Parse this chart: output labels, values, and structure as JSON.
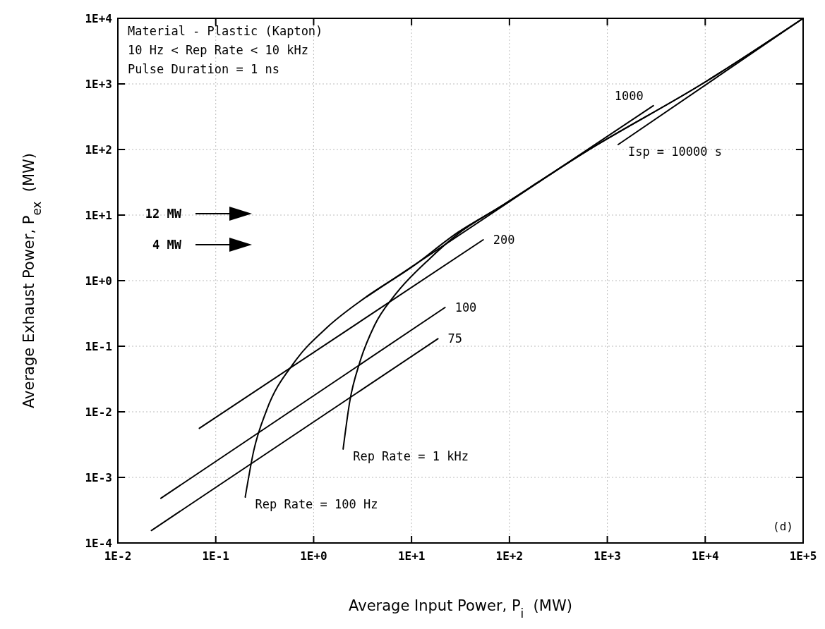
{
  "chart_data": {
    "type": "line",
    "xlabel": "Average Input Power, P$_{i}$  (MW)",
    "ylabel": "Average Exhaust Power, P$_{ex}$  (MW)",
    "log": "xy",
    "grid": true,
    "marker": "none",
    "line_style": "solid",
    "xlim": [
      0.01,
      100000
    ],
    "ylim": [
      0.0001,
      10000
    ],
    "xticks": [
      {
        "value": 0.01,
        "label": "1E-2"
      },
      {
        "value": 0.1,
        "label": "1E-1"
      },
      {
        "value": 1,
        "label": "1E+0"
      },
      {
        "value": 10,
        "label": "1E+1"
      },
      {
        "value": 100,
        "label": "1E+2"
      },
      {
        "value": 1000,
        "label": "1E+3"
      },
      {
        "value": 10000,
        "label": "1E+4"
      },
      {
        "value": 100000,
        "label": "1E+5"
      }
    ],
    "yticks": [
      {
        "value": 0.0001,
        "label": "1E-4"
      },
      {
        "value": 0.001,
        "label": "1E-3"
      },
      {
        "value": 0.01,
        "label": "1E-2"
      },
      {
        "value": 0.1,
        "label": "1E-1"
      },
      {
        "value": 1,
        "label": "1E+0"
      },
      {
        "value": 10,
        "label": "1E+1"
      },
      {
        "value": 100,
        "label": "1E+2"
      },
      {
        "value": 1000,
        "label": "1E+3"
      },
      {
        "value": 10000,
        "label": "1E+4"
      }
    ],
    "series": [
      {
        "name": "75",
        "color": "#000000",
        "x": [
          0.022,
          18.6
        ],
        "values": [
          0.000155,
          0.13
        ]
      },
      {
        "name": "100",
        "color": "#000000",
        "x": [
          0.0275,
          22
        ],
        "values": [
          0.00048,
          0.39
        ]
      },
      {
        "name": "200",
        "color": "#000000",
        "x": [
          0.068,
          54
        ],
        "values": [
          0.0056,
          4.2
        ]
      },
      {
        "name": "1000",
        "color": "#000000",
        "x": [
          3.5,
          2950
        ],
        "values": [
          0.57,
          465
        ]
      },
      {
        "name": "Isp = 10000 s",
        "color": "#000000",
        "x": [
          1290,
          100000
        ],
        "values": [
          119,
          10000
        ]
      },
      {
        "name": "Rep Rate = 100 Hz",
        "color": "#000000",
        "x": [
          0.2,
          0.245,
          0.33,
          0.63,
          1.38,
          3.3,
          10,
          30,
          78,
          590,
          10000,
          100000
        ],
        "values": [
          0.0005,
          0.0026,
          0.0105,
          0.056,
          0.195,
          0.54,
          1.6,
          5.5,
          13,
          91,
          1070,
          10000
        ]
      },
      {
        "name": "Rep Rate = 1 kHz",
        "color": "#000000",
        "x": [
          2.0,
          2.35,
          2.95,
          4.2,
          6.8,
          15.5,
          30,
          78,
          590,
          10000,
          100000
        ],
        "values": [
          0.0027,
          0.015,
          0.056,
          0.21,
          0.61,
          2.2,
          5.2,
          13,
          91,
          1070,
          10000
        ]
      }
    ],
    "annotations": [
      "Material - Plastic (Kapton)",
      "10 Hz < Rep Rate < 10 kHz",
      "Pulse Duration = 1 ns",
      "12 MW",
      "4 MW",
      "(d)"
    ]
  }
}
